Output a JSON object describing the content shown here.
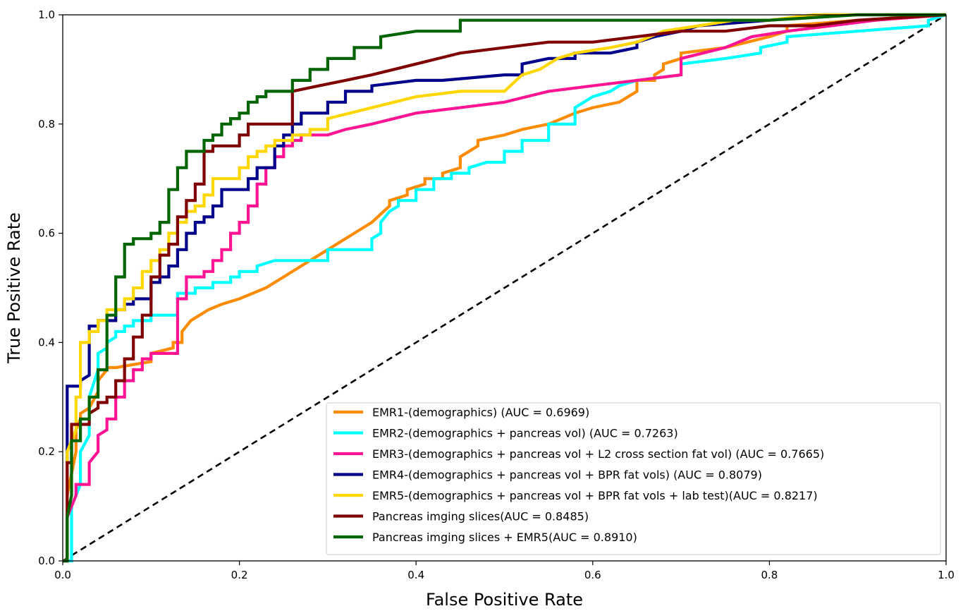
{
  "chart_data": {
    "type": "line",
    "title": "",
    "xlabel": "False Positive Rate",
    "ylabel": "True Positive Rate",
    "xlim": [
      0.0,
      1.0
    ],
    "ylim": [
      0.0,
      1.0
    ],
    "xticks": [
      "0.0",
      "0.2",
      "0.4",
      "0.6",
      "0.8",
      "1.0"
    ],
    "yticks": [
      "0.0",
      "0.2",
      "0.4",
      "0.6",
      "0.8",
      "1.0"
    ],
    "grid": false,
    "legend_position": "lower-right",
    "diagonal": {
      "x": [
        0,
        1
      ],
      "y": [
        0,
        1
      ],
      "color": "#000000",
      "style": "dashed"
    },
    "series": [
      {
        "name": "EMR1-(demographics) (AUC = 0.6969)",
        "color": "#ff8c00",
        "x": [
          0,
          0.005,
          0.005,
          0.015,
          0.015,
          0.02,
          0.02,
          0.03,
          0.04,
          0.04,
          0.05,
          0.05,
          0.06,
          0.1,
          0.1,
          0.125,
          0.125,
          0.135,
          0.135,
          0.145,
          0.145,
          0.155,
          0.155,
          0.165,
          0.165,
          0.18,
          0.2,
          0.23,
          0.25,
          0.27,
          0.29,
          0.31,
          0.33,
          0.35,
          0.37,
          0.37,
          0.39,
          0.39,
          0.41,
          0.41,
          0.43,
          0.43,
          0.45,
          0.45,
          0.47,
          0.47,
          0.5,
          0.52,
          0.55,
          0.58,
          0.6,
          0.63,
          0.65,
          0.65,
          0.67,
          0.67,
          0.68,
          0.68,
          0.7,
          0.7,
          0.75,
          0.8,
          0.82,
          0.82,
          0.9,
          1.0
        ],
        "y": [
          0,
          0,
          0.12,
          0.2,
          0.24,
          0.26,
          0.27,
          0.28,
          0.31,
          0.33,
          0.35,
          0.354,
          0.354,
          0.365,
          0.38,
          0.39,
          0.4,
          0.4,
          0.42,
          0.44,
          0.44,
          0.45,
          0.45,
          0.46,
          0.46,
          0.47,
          0.48,
          0.5,
          0.52,
          0.54,
          0.56,
          0.58,
          0.6,
          0.62,
          0.65,
          0.66,
          0.67,
          0.68,
          0.69,
          0.7,
          0.7,
          0.71,
          0.72,
          0.74,
          0.76,
          0.77,
          0.78,
          0.79,
          0.8,
          0.82,
          0.83,
          0.84,
          0.86,
          0.88,
          0.88,
          0.89,
          0.9,
          0.91,
          0.92,
          0.93,
          0.94,
          0.96,
          0.97,
          0.98,
          0.99,
          1.0
        ]
      },
      {
        "name": "EMR2-(demographics + pancreas vol) (AUC = 0.7263)",
        "color": "#00ffff",
        "x": [
          0,
          0.01,
          0.01,
          0.02,
          0.02,
          0.03,
          0.03,
          0.04,
          0.04,
          0.05,
          0.05,
          0.06,
          0.06,
          0.07,
          0.07,
          0.08,
          0.08,
          0.1,
          0.1,
          0.13,
          0.13,
          0.15,
          0.15,
          0.17,
          0.17,
          0.19,
          0.19,
          0.2,
          0.2,
          0.22,
          0.22,
          0.24,
          0.3,
          0.3,
          0.35,
          0.35,
          0.36,
          0.36,
          0.37,
          0.38,
          0.38,
          0.4,
          0.4,
          0.42,
          0.42,
          0.44,
          0.44,
          0.46,
          0.46,
          0.48,
          0.5,
          0.5,
          0.52,
          0.52,
          0.55,
          0.55,
          0.58,
          0.58,
          0.6,
          0.62,
          0.63,
          0.65,
          0.7,
          0.7,
          0.75,
          0.79,
          0.79,
          0.82,
          0.82,
          0.9,
          0.98,
          0.98,
          1.0
        ],
        "y": [
          0,
          0,
          0.1,
          0.14,
          0.2,
          0.23,
          0.3,
          0.35,
          0.38,
          0.39,
          0.4,
          0.41,
          0.42,
          0.42,
          0.43,
          0.43,
          0.44,
          0.44,
          0.45,
          0.45,
          0.49,
          0.49,
          0.5,
          0.5,
          0.51,
          0.51,
          0.52,
          0.52,
          0.53,
          0.53,
          0.54,
          0.55,
          0.55,
          0.57,
          0.57,
          0.59,
          0.6,
          0.62,
          0.64,
          0.65,
          0.66,
          0.66,
          0.68,
          0.68,
          0.7,
          0.7,
          0.71,
          0.71,
          0.72,
          0.73,
          0.73,
          0.75,
          0.75,
          0.77,
          0.77,
          0.8,
          0.8,
          0.83,
          0.85,
          0.86,
          0.87,
          0.88,
          0.89,
          0.91,
          0.92,
          0.93,
          0.94,
          0.95,
          0.96,
          0.97,
          0.98,
          0.99,
          1.0
        ]
      },
      {
        "name": "EMR3-(demographics  + pancreas vol + L2 cross section fat vol) (AUC = 0.7665)",
        "color": "#ff1493",
        "x": [
          0,
          0.005,
          0.005,
          0.015,
          0.015,
          0.03,
          0.03,
          0.04,
          0.04,
          0.05,
          0.05,
          0.06,
          0.06,
          0.07,
          0.07,
          0.08,
          0.08,
          0.09,
          0.09,
          0.1,
          0.1,
          0.13,
          0.13,
          0.14,
          0.14,
          0.16,
          0.16,
          0.17,
          0.17,
          0.18,
          0.18,
          0.19,
          0.19,
          0.2,
          0.2,
          0.21,
          0.21,
          0.22,
          0.22,
          0.23,
          0.23,
          0.24,
          0.24,
          0.25,
          0.25,
          0.26,
          0.26,
          0.27,
          0.27,
          0.28,
          0.3,
          0.32,
          0.35,
          0.4,
          0.45,
          0.5,
          0.55,
          0.6,
          0.65,
          0.7,
          0.7,
          0.75,
          0.78,
          0.82,
          0.87,
          0.92,
          1.0
        ],
        "y": [
          0,
          0,
          0.08,
          0.12,
          0.14,
          0.14,
          0.18,
          0.2,
          0.23,
          0.24,
          0.26,
          0.26,
          0.3,
          0.3,
          0.33,
          0.33,
          0.35,
          0.35,
          0.37,
          0.37,
          0.38,
          0.38,
          0.48,
          0.48,
          0.52,
          0.52,
          0.53,
          0.53,
          0.55,
          0.55,
          0.57,
          0.57,
          0.6,
          0.6,
          0.62,
          0.62,
          0.65,
          0.65,
          0.69,
          0.69,
          0.72,
          0.72,
          0.74,
          0.74,
          0.76,
          0.76,
          0.77,
          0.77,
          0.78,
          0.78,
          0.78,
          0.79,
          0.8,
          0.82,
          0.83,
          0.84,
          0.86,
          0.87,
          0.88,
          0.89,
          0.92,
          0.94,
          0.96,
          0.97,
          0.98,
          0.99,
          1.0
        ]
      },
      {
        "name": "EMR4-(demographics + pancreas vol + BPR fat vols) (AUC = 0.8079)",
        "color": "#00008b",
        "x": [
          0,
          0.005,
          0.005,
          0.02,
          0.02,
          0.03,
          0.03,
          0.04,
          0.04,
          0.06,
          0.06,
          0.07,
          0.07,
          0.08,
          0.08,
          0.1,
          0.1,
          0.11,
          0.11,
          0.12,
          0.12,
          0.13,
          0.13,
          0.14,
          0.14,
          0.15,
          0.15,
          0.16,
          0.16,
          0.17,
          0.17,
          0.18,
          0.18,
          0.21,
          0.21,
          0.22,
          0.22,
          0.24,
          0.24,
          0.25,
          0.25,
          0.26,
          0.26,
          0.27,
          0.27,
          0.3,
          0.3,
          0.32,
          0.32,
          0.35,
          0.35,
          0.4,
          0.43,
          0.5,
          0.52,
          0.52,
          0.55,
          0.58,
          0.58,
          0.62,
          0.65,
          0.65,
          0.67,
          0.7,
          0.72,
          0.8,
          0.86,
          0.86,
          0.92,
          1.0
        ],
        "y": [
          0,
          0,
          0.32,
          0.32,
          0.33,
          0.34,
          0.43,
          0.43,
          0.44,
          0.44,
          0.46,
          0.46,
          0.47,
          0.47,
          0.48,
          0.48,
          0.51,
          0.51,
          0.52,
          0.52,
          0.54,
          0.54,
          0.57,
          0.57,
          0.6,
          0.6,
          0.62,
          0.62,
          0.63,
          0.63,
          0.65,
          0.65,
          0.68,
          0.68,
          0.7,
          0.7,
          0.72,
          0.72,
          0.76,
          0.76,
          0.78,
          0.78,
          0.8,
          0.8,
          0.82,
          0.82,
          0.84,
          0.84,
          0.86,
          0.86,
          0.87,
          0.88,
          0.88,
          0.89,
          0.89,
          0.91,
          0.92,
          0.92,
          0.93,
          0.93,
          0.94,
          0.95,
          0.96,
          0.97,
          0.98,
          0.99,
          1.0,
          1.0,
          1.0,
          1.0
        ]
      },
      {
        "name": "EMR5-(demographics + pancreas vol + BPR fat vols + lab test)(AUC = 0.8217)",
        "color": "#ffd700",
        "x": [
          0,
          0.005,
          0.005,
          0.015,
          0.015,
          0.02,
          0.02,
          0.03,
          0.03,
          0.04,
          0.04,
          0.05,
          0.05,
          0.07,
          0.07,
          0.08,
          0.08,
          0.09,
          0.09,
          0.1,
          0.1,
          0.11,
          0.11,
          0.12,
          0.12,
          0.13,
          0.13,
          0.14,
          0.14,
          0.15,
          0.15,
          0.16,
          0.16,
          0.17,
          0.17,
          0.2,
          0.2,
          0.21,
          0.21,
          0.22,
          0.22,
          0.23,
          0.23,
          0.24,
          0.24,
          0.26,
          0.26,
          0.28,
          0.28,
          0.3,
          0.3,
          0.35,
          0.4,
          0.45,
          0.5,
          0.52,
          0.54,
          0.55,
          0.56,
          0.58,
          0.62,
          0.65,
          0.68,
          0.72,
          0.76,
          0.8,
          0.85,
          0.9,
          0.96,
          1.0
        ],
        "y": [
          0,
          0,
          0.2,
          0.24,
          0.3,
          0.3,
          0.4,
          0.4,
          0.42,
          0.42,
          0.44,
          0.44,
          0.46,
          0.46,
          0.48,
          0.48,
          0.5,
          0.5,
          0.53,
          0.53,
          0.55,
          0.55,
          0.57,
          0.57,
          0.6,
          0.6,
          0.62,
          0.62,
          0.64,
          0.64,
          0.65,
          0.65,
          0.67,
          0.67,
          0.7,
          0.7,
          0.72,
          0.72,
          0.74,
          0.74,
          0.75,
          0.75,
          0.76,
          0.76,
          0.77,
          0.77,
          0.78,
          0.78,
          0.79,
          0.79,
          0.81,
          0.83,
          0.85,
          0.86,
          0.86,
          0.89,
          0.9,
          0.91,
          0.92,
          0.93,
          0.94,
          0.95,
          0.97,
          0.98,
          0.99,
          0.99,
          1.0,
          1.0,
          1.0,
          1.0
        ]
      },
      {
        "name": "Pancreas imging slices(AUC = 0.8485)",
        "color": "#800000",
        "x": [
          0,
          0.005,
          0.005,
          0.01,
          0.01,
          0.03,
          0.03,
          0.04,
          0.04,
          0.05,
          0.05,
          0.06,
          0.06,
          0.07,
          0.07,
          0.08,
          0.08,
          0.09,
          0.09,
          0.1,
          0.1,
          0.11,
          0.11,
          0.12,
          0.12,
          0.13,
          0.13,
          0.14,
          0.14,
          0.15,
          0.15,
          0.16,
          0.16,
          0.17,
          0.17,
          0.2,
          0.2,
          0.21,
          0.21,
          0.26,
          0.26,
          0.29,
          0.32,
          0.35,
          0.4,
          0.45,
          0.5,
          0.55,
          0.6,
          0.65,
          0.7,
          0.75,
          0.8,
          0.85,
          0.9,
          1.0
        ],
        "y": [
          0,
          0,
          0.18,
          0.18,
          0.25,
          0.25,
          0.27,
          0.28,
          0.29,
          0.29,
          0.3,
          0.3,
          0.33,
          0.33,
          0.37,
          0.37,
          0.41,
          0.41,
          0.45,
          0.45,
          0.52,
          0.52,
          0.56,
          0.56,
          0.58,
          0.58,
          0.63,
          0.63,
          0.66,
          0.66,
          0.69,
          0.69,
          0.75,
          0.75,
          0.76,
          0.76,
          0.78,
          0.78,
          0.8,
          0.8,
          0.86,
          0.87,
          0.88,
          0.89,
          0.91,
          0.93,
          0.94,
          0.95,
          0.95,
          0.96,
          0.97,
          0.97,
          0.98,
          0.98,
          0.99,
          1.0
        ]
      },
      {
        "name": "Pancreas imging slices + EMR5(AUC = 0.8910)",
        "color": "#006400",
        "x": [
          0,
          0.005,
          0.005,
          0.01,
          0.01,
          0.02,
          0.02,
          0.03,
          0.03,
          0.04,
          0.04,
          0.05,
          0.05,
          0.06,
          0.06,
          0.07,
          0.07,
          0.08,
          0.08,
          0.1,
          0.1,
          0.11,
          0.11,
          0.12,
          0.12,
          0.13,
          0.13,
          0.14,
          0.14,
          0.16,
          0.16,
          0.17,
          0.17,
          0.18,
          0.18,
          0.19,
          0.19,
          0.2,
          0.2,
          0.21,
          0.21,
          0.22,
          0.22,
          0.23,
          0.23,
          0.26,
          0.26,
          0.28,
          0.28,
          0.3,
          0.3,
          0.33,
          0.33,
          0.36,
          0.36,
          0.4,
          0.45,
          0.45,
          0.5,
          0.6,
          0.7,
          0.8,
          0.9,
          1.0
        ],
        "y": [
          0,
          0,
          0.08,
          0.12,
          0.22,
          0.22,
          0.26,
          0.26,
          0.3,
          0.3,
          0.35,
          0.35,
          0.45,
          0.45,
          0.52,
          0.52,
          0.58,
          0.58,
          0.59,
          0.59,
          0.6,
          0.6,
          0.62,
          0.62,
          0.68,
          0.68,
          0.72,
          0.72,
          0.75,
          0.75,
          0.77,
          0.77,
          0.78,
          0.78,
          0.8,
          0.8,
          0.81,
          0.81,
          0.82,
          0.82,
          0.84,
          0.84,
          0.85,
          0.85,
          0.86,
          0.86,
          0.88,
          0.88,
          0.9,
          0.9,
          0.92,
          0.92,
          0.94,
          0.94,
          0.96,
          0.97,
          0.97,
          0.99,
          0.99,
          0.99,
          0.99,
          0.99,
          1.0,
          1.0
        ]
      }
    ]
  }
}
